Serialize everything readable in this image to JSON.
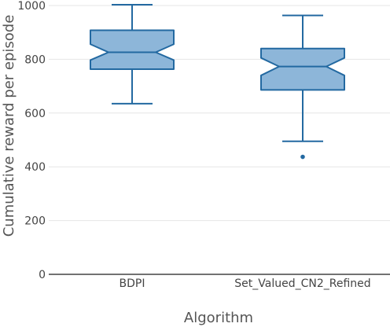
{
  "chart_data": {
    "type": "box",
    "xlabel": "Algorithm",
    "ylabel": "Cumulative reward per episode",
    "ylim": [
      0,
      1000
    ],
    "yticks": [
      0,
      200,
      400,
      600,
      800,
      1000
    ],
    "grid": true,
    "notched": true,
    "categories": [
      "BDPI",
      "Set_Valued_CN2_Refined"
    ],
    "boxes": [
      {
        "category": "BDPI",
        "whisker_low": 635,
        "q1": 763,
        "median": 826,
        "q3": 908,
        "whisker_high": 1003,
        "notch_low": 797,
        "notch_high": 856,
        "outliers": []
      },
      {
        "category": "Set_Valued_CN2_Refined",
        "whisker_low": 495,
        "q1": 686,
        "median": 773,
        "q3": 840,
        "whisker_high": 963,
        "notch_low": 740,
        "notch_high": 805,
        "outliers": [
          437
        ]
      }
    ],
    "colors": {
      "fill": "#8db6d9",
      "stroke": "#2369a1",
      "grid": "#e6e6e6",
      "axis": "#444444"
    }
  }
}
